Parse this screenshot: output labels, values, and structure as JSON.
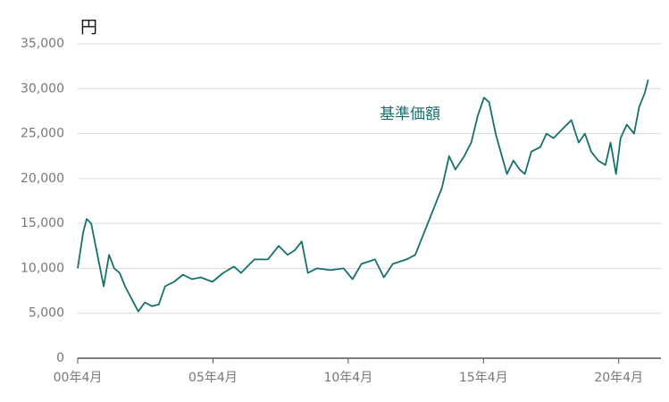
{
  "chart_data": {
    "type": "line",
    "y_label": "円",
    "x": [
      2000.25,
      2000.45,
      2000.58,
      2000.75,
      2000.88,
      2001.08,
      2001.21,
      2001.41,
      2001.6,
      2001.8,
      2002.0,
      2002.26,
      2002.49,
      2002.73,
      2002.99,
      2003.25,
      2003.48,
      2003.81,
      2004.14,
      2004.47,
      2004.8,
      2005.23,
      2005.63,
      2006.03,
      2006.29,
      2006.78,
      2007.28,
      2007.68,
      2008.01,
      2008.27,
      2008.53,
      2008.76,
      2009.09,
      2009.59,
      2010.08,
      2010.41,
      2010.74,
      2011.24,
      2011.57,
      2011.9,
      2012.4,
      2012.73,
      2013.06,
      2013.39,
      2013.72,
      2013.98,
      2014.21,
      2014.54,
      2014.8,
      2015.04,
      2015.27,
      2015.46,
      2015.7,
      2015.93,
      2016.12,
      2016.36,
      2016.59,
      2016.78,
      2017.02,
      2017.35,
      2017.58,
      2017.84,
      2018.17,
      2018.5,
      2018.77,
      2019.0,
      2019.23,
      2019.49,
      2019.76,
      2019.95,
      2020.15,
      2020.32,
      2020.55,
      2020.82,
      2021.01,
      2021.21,
      2021.34
    ],
    "series": [
      {
        "name": "基準価額",
        "color": "#16706e",
        "values": [
          10000,
          14000,
          15500,
          15000,
          13000,
          10000,
          8000,
          11500,
          10000,
          9500,
          8000,
          6500,
          5200,
          6200,
          5800,
          6000,
          8000,
          8500,
          9300,
          8800,
          9000,
          8500,
          9500,
          10200,
          9500,
          11000,
          11000,
          12500,
          11500,
          12000,
          13000,
          9500,
          10000,
          9800,
          10000,
          8800,
          10500,
          11000,
          9000,
          10500,
          11000,
          11500,
          14000,
          16500,
          19000,
          22500,
          21000,
          22500,
          24000,
          27000,
          29000,
          28500,
          25000,
          22500,
          20500,
          22000,
          21000,
          20500,
          23000,
          23500,
          25000,
          24500,
          25500,
          26500,
          24000,
          25000,
          23000,
          22000,
          21500,
          24000,
          20500,
          24500,
          26000,
          25000,
          28000,
          29500,
          31000
        ]
      }
    ],
    "xlim": [
      2000.25,
      2021.35
    ],
    "xticks": [
      {
        "value": 2000.25,
        "label": "00年4月"
      },
      {
        "value": 2005.25,
        "label": "05年4月"
      },
      {
        "value": 2010.25,
        "label": "10年4月"
      },
      {
        "value": 2015.25,
        "label": "15年4月"
      },
      {
        "value": 2020.25,
        "label": "20年4月"
      }
    ],
    "ylim": [
      0,
      35000
    ],
    "yticks": [
      0,
      {
        "value": 5000,
        "label": "5,000"
      },
      {
        "value": 10000,
        "label": "10,000"
      },
      {
        "value": 15000,
        "label": "15,000"
      },
      {
        "value": 20000,
        "label": "20,000"
      },
      {
        "value": 25000,
        "label": "25,000"
      },
      {
        "value": 30000,
        "label": "30,000"
      },
      {
        "value": 35000,
        "label": "35,000"
      }
    ],
    "grid": true
  }
}
